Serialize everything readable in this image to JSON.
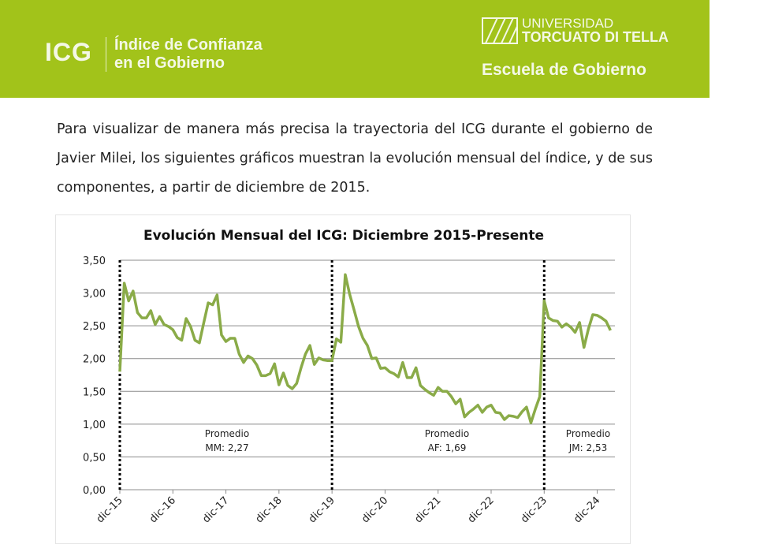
{
  "header": {
    "acronym": "ICG",
    "subtitle_line1": "Índice de Confianza",
    "subtitle_line2": "en el Gobierno",
    "university_line1": "UNIVERSIDAD",
    "university_line2": "TORCUATO DI TELLA",
    "school": "Escuela de Gobierno",
    "brand_color": "#a2c31a"
  },
  "intro_text": "Para visualizar de manera más precisa la trayectoria del ICG durante el gobierno de Javier Milei, los siguientes gráficos muestran la evolución mensual del índice, y de sus componentes, a partir de diciembre de 2015.",
  "chart_data": {
    "type": "line",
    "title": "Evolución Mensual del ICG: Diciembre 2015-Presente",
    "xlabel": "",
    "ylabel": "",
    "ylim": [
      0,
      3.5
    ],
    "y_ticks": [
      "0,00",
      "0,50",
      "1,00",
      "1,50",
      "2,00",
      "2,50",
      "3,00",
      "3,50"
    ],
    "x_tick_labels": [
      "dic-15",
      "dic-16",
      "dic-17",
      "dic-18",
      "dic-19",
      "dic-20",
      "dic-21",
      "dic-22",
      "dic-23",
      "dic-24"
    ],
    "grid": true,
    "line_color": "#8aab48",
    "start": "dic-15",
    "series": [
      {
        "name": "ICG",
        "values": [
          1.8,
          3.15,
          2.88,
          3.03,
          2.7,
          2.62,
          2.62,
          2.73,
          2.52,
          2.64,
          2.52,
          2.49,
          2.44,
          2.32,
          2.28,
          2.61,
          2.49,
          2.28,
          2.24,
          2.55,
          2.85,
          2.82,
          2.97,
          2.36,
          2.26,
          2.31,
          2.31,
          2.07,
          1.94,
          2.04,
          2.0,
          1.9,
          1.74,
          1.74,
          1.77,
          1.92,
          1.6,
          1.78,
          1.59,
          1.54,
          1.62,
          1.86,
          2.07,
          2.2,
          1.91,
          2.01,
          1.98,
          1.97,
          1.97,
          2.3,
          2.25,
          3.28,
          2.98,
          2.74,
          2.49,
          2.31,
          2.2,
          2.0,
          2.01,
          1.85,
          1.86,
          1.8,
          1.77,
          1.72,
          1.94,
          1.71,
          1.71,
          1.86,
          1.59,
          1.53,
          1.48,
          1.44,
          1.56,
          1.5,
          1.5,
          1.42,
          1.31,
          1.38,
          1.11,
          1.18,
          1.23,
          1.29,
          1.18,
          1.26,
          1.29,
          1.18,
          1.17,
          1.07,
          1.13,
          1.12,
          1.1,
          1.19,
          1.26,
          1.02,
          1.23,
          1.42,
          2.88,
          2.62,
          2.58,
          2.57,
          2.48,
          2.53,
          2.48,
          2.4,
          2.55,
          2.17,
          2.45,
          2.67,
          2.66,
          2.62,
          2.57,
          2.43
        ]
      }
    ],
    "government_breaks": [
      "dic-15",
      "dic-19",
      "dic-23"
    ],
    "annotations": [
      {
        "line1": "Promedio",
        "line2": "MM: 2,27"
      },
      {
        "line1": "Promedio",
        "line2": "AF: 1,69"
      },
      {
        "line1": "Promedio",
        "line2": "JM: 2,53"
      }
    ]
  }
}
